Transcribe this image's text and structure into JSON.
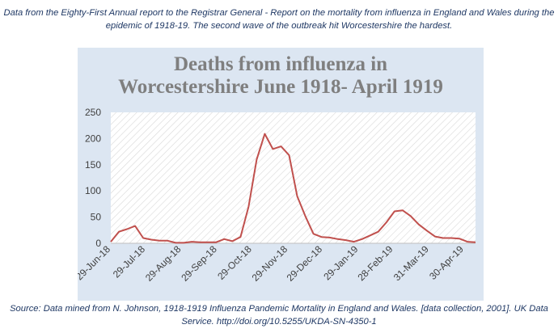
{
  "captions": {
    "top": "Data from the Eighty-First Annual report to the Registrar General - Report on the mortality from influenza in England and Wales during the epidemic of 1918-19. The second wave of the outbreak hit Worcestershire the hardest.",
    "bottom": "Source: Data mined from N. Johnson, 1918-1919 Influenza Pandemic Mortality in England and Wales. [data collection, 2001]. UK Data Service. http://doi.org/10.5255/UKDA-SN-4350-1"
  },
  "colors": {
    "chart_background": "#dce6f2",
    "plot_hatch": "#d9d9d9",
    "line": "#c0504d",
    "caption_text": "#1f3864"
  },
  "chart_data": {
    "type": "line",
    "title_lines": [
      "Deaths from influenza in",
      "Worcestershire June 1918- April 1919"
    ],
    "xlabel": "",
    "ylabel": "",
    "ylim": [
      0,
      250
    ],
    "yticks": [
      0,
      50,
      100,
      150,
      200,
      250
    ],
    "x_tick_labels": [
      "29-Jun-18",
      "29-Jul-18",
      "29-Aug-18",
      "29-Sep-18",
      "29-Oct-18",
      "29-Nov-18",
      "29-Dec-18",
      "29-Jan-19",
      "28-Feb-19",
      "31-Mar-19",
      "30-Apr-19"
    ],
    "x_range": [
      "1918-06-29",
      "1919-05-10"
    ],
    "grid": false,
    "legend": "none",
    "series": [
      {
        "name": "",
        "points": [
          [
            "1918-06-29",
            3
          ],
          [
            "1918-07-06",
            22
          ],
          [
            "1918-07-13",
            27
          ],
          [
            "1918-07-20",
            33
          ],
          [
            "1918-07-27",
            10
          ],
          [
            "1918-08-03",
            7
          ],
          [
            "1918-08-10",
            5
          ],
          [
            "1918-08-17",
            5
          ],
          [
            "1918-08-24",
            1
          ],
          [
            "1918-08-31",
            1
          ],
          [
            "1918-09-07",
            3
          ],
          [
            "1918-09-14",
            2
          ],
          [
            "1918-09-21",
            2
          ],
          [
            "1918-09-28",
            2
          ],
          [
            "1918-10-05",
            8
          ],
          [
            "1918-10-12",
            4
          ],
          [
            "1918-10-19",
            12
          ],
          [
            "1918-10-26",
            70
          ],
          [
            "1918-11-02",
            160
          ],
          [
            "1918-11-09",
            209
          ],
          [
            "1918-11-16",
            180
          ],
          [
            "1918-11-23",
            185
          ],
          [
            "1918-11-30",
            168
          ],
          [
            "1918-12-07",
            90
          ],
          [
            "1918-12-14",
            52
          ],
          [
            "1918-12-21",
            18
          ],
          [
            "1918-12-28",
            12
          ],
          [
            "1919-01-04",
            11
          ],
          [
            "1919-01-11",
            8
          ],
          [
            "1919-01-18",
            6
          ],
          [
            "1919-01-25",
            3
          ],
          [
            "1919-02-01",
            8
          ],
          [
            "1919-02-08",
            15
          ],
          [
            "1919-02-15",
            22
          ],
          [
            "1919-02-22",
            40
          ],
          [
            "1919-03-01",
            61
          ],
          [
            "1919-03-08",
            63
          ],
          [
            "1919-03-15",
            52
          ],
          [
            "1919-03-22",
            36
          ],
          [
            "1919-03-29",
            24
          ],
          [
            "1919-04-05",
            13
          ],
          [
            "1919-04-12",
            10
          ],
          [
            "1919-04-19",
            10
          ],
          [
            "1919-04-26",
            9
          ],
          [
            "1919-05-03",
            3
          ],
          [
            "1919-05-10",
            2
          ]
        ]
      }
    ]
  }
}
